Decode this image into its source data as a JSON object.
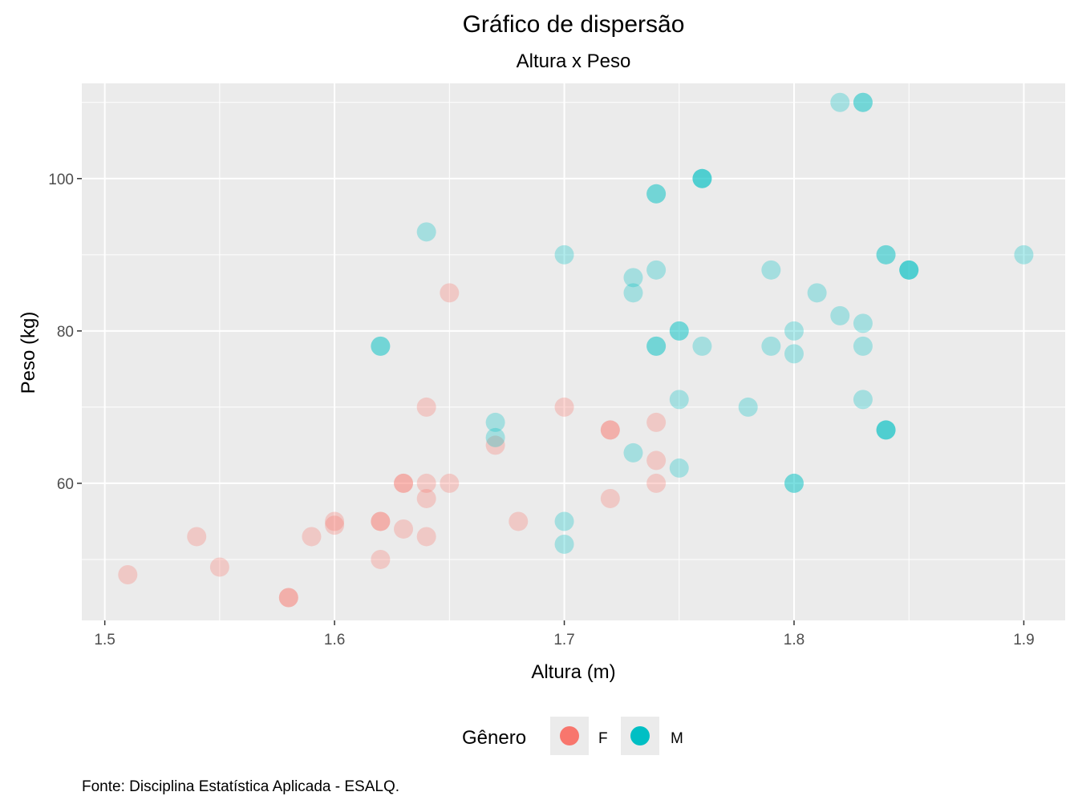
{
  "chart_data": {
    "type": "scatter",
    "title": "Gráfico de dispersão",
    "subtitle": "Altura x Peso",
    "xlabel": "Altura (m)",
    "ylabel": "Peso (kg)",
    "caption": "Fonte: Disciplina Estatística Aplicada - ESALQ.",
    "xlim": [
      1.49,
      1.918
    ],
    "ylim": [
      42,
      112.5
    ],
    "x_ticks": [
      1.5,
      1.6,
      1.7,
      1.8,
      1.9
    ],
    "x_tick_labels": [
      "1.5",
      "1.6",
      "1.7",
      "1.8",
      "1.9"
    ],
    "y_ticks": [
      60,
      80,
      100
    ],
    "y_tick_labels": [
      "60",
      "80",
      "100"
    ],
    "grid": true,
    "legend": {
      "title": "Gênero",
      "position": "bottom"
    },
    "series": [
      {
        "name": "F",
        "color": "#F8766D",
        "points": [
          {
            "x": 1.51,
            "y": 48
          },
          {
            "x": 1.54,
            "y": 53
          },
          {
            "x": 1.55,
            "y": 49
          },
          {
            "x": 1.58,
            "y": 45
          },
          {
            "x": 1.58,
            "y": 45
          },
          {
            "x": 1.59,
            "y": 53
          },
          {
            "x": 1.6,
            "y": 55
          },
          {
            "x": 1.6,
            "y": 54.5
          },
          {
            "x": 1.62,
            "y": 55
          },
          {
            "x": 1.62,
            "y": 55
          },
          {
            "x": 1.62,
            "y": 50
          },
          {
            "x": 1.63,
            "y": 60
          },
          {
            "x": 1.63,
            "y": 60
          },
          {
            "x": 1.63,
            "y": 54
          },
          {
            "x": 1.64,
            "y": 70
          },
          {
            "x": 1.64,
            "y": 60
          },
          {
            "x": 1.64,
            "y": 58
          },
          {
            "x": 1.64,
            "y": 53
          },
          {
            "x": 1.65,
            "y": 85
          },
          {
            "x": 1.65,
            "y": 60
          },
          {
            "x": 1.67,
            "y": 65
          },
          {
            "x": 1.68,
            "y": 55
          },
          {
            "x": 1.7,
            "y": 70
          },
          {
            "x": 1.72,
            "y": 67
          },
          {
            "x": 1.72,
            "y": 67
          },
          {
            "x": 1.72,
            "y": 58
          },
          {
            "x": 1.74,
            "y": 68
          },
          {
            "x": 1.74,
            "y": 63
          },
          {
            "x": 1.74,
            "y": 60
          }
        ]
      },
      {
        "name": "M",
        "color": "#00BFC4",
        "points": [
          {
            "x": 1.62,
            "y": 78
          },
          {
            "x": 1.62,
            "y": 78
          },
          {
            "x": 1.64,
            "y": 93
          },
          {
            "x": 1.67,
            "y": 68
          },
          {
            "x": 1.67,
            "y": 66
          },
          {
            "x": 1.7,
            "y": 90
          },
          {
            "x": 1.7,
            "y": 55
          },
          {
            "x": 1.7,
            "y": 52
          },
          {
            "x": 1.73,
            "y": 87
          },
          {
            "x": 1.73,
            "y": 85
          },
          {
            "x": 1.73,
            "y": 64
          },
          {
            "x": 1.74,
            "y": 98
          },
          {
            "x": 1.74,
            "y": 98
          },
          {
            "x": 1.74,
            "y": 88
          },
          {
            "x": 1.74,
            "y": 78
          },
          {
            "x": 1.74,
            "y": 78
          },
          {
            "x": 1.75,
            "y": 80
          },
          {
            "x": 1.75,
            "y": 80
          },
          {
            "x": 1.75,
            "y": 71
          },
          {
            "x": 1.75,
            "y": 62
          },
          {
            "x": 1.76,
            "y": 100
          },
          {
            "x": 1.76,
            "y": 100
          },
          {
            "x": 1.76,
            "y": 100
          },
          {
            "x": 1.76,
            "y": 78
          },
          {
            "x": 1.78,
            "y": 70
          },
          {
            "x": 1.79,
            "y": 88
          },
          {
            "x": 1.79,
            "y": 78
          },
          {
            "x": 1.8,
            "y": 80
          },
          {
            "x": 1.8,
            "y": 77
          },
          {
            "x": 1.8,
            "y": 60
          },
          {
            "x": 1.8,
            "y": 60
          },
          {
            "x": 1.81,
            "y": 85
          },
          {
            "x": 1.82,
            "y": 110
          },
          {
            "x": 1.82,
            "y": 82
          },
          {
            "x": 1.83,
            "y": 110
          },
          {
            "x": 1.83,
            "y": 110
          },
          {
            "x": 1.83,
            "y": 81
          },
          {
            "x": 1.83,
            "y": 78
          },
          {
            "x": 1.83,
            "y": 71
          },
          {
            "x": 1.84,
            "y": 90
          },
          {
            "x": 1.84,
            "y": 90
          },
          {
            "x": 1.84,
            "y": 67
          },
          {
            "x": 1.84,
            "y": 67
          },
          {
            "x": 1.84,
            "y": 67
          },
          {
            "x": 1.85,
            "y": 88
          },
          {
            "x": 1.85,
            "y": 88
          },
          {
            "x": 1.85,
            "y": 88
          },
          {
            "x": 1.9,
            "y": 90
          }
        ]
      }
    ]
  }
}
